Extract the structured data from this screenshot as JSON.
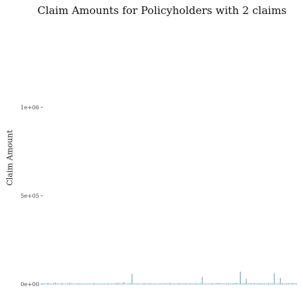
{
  "chart_data": {
    "type": "bar",
    "title": "Claim Amounts for Policyholders with 2 claims",
    "xlabel": "",
    "ylabel": "Claim Amount",
    "ylim": [
      0,
      1000000
    ],
    "y_ticks": [
      {
        "value": 0,
        "label": "0e+00"
      },
      {
        "value": 500000,
        "label": "5e+05"
      },
      {
        "value": 1000000,
        "label": "1e+06"
      }
    ],
    "grid": false,
    "legend": "none",
    "color": "#4a90c8",
    "values": [
      4000,
      2000,
      7000,
      3000,
      1500,
      5000,
      9000,
      3000,
      2000,
      6000,
      2500,
      1000,
      4000,
      8000,
      3000,
      2000,
      1500,
      5000,
      3000,
      2500,
      1000,
      2000,
      4000,
      3000,
      1500,
      6000,
      2000,
      3000,
      2500,
      1000,
      3000,
      2000,
      5000,
      1500,
      3000,
      2000,
      4000,
      8000,
      2500,
      3000,
      12000,
      2000,
      3000,
      6000,
      58000,
      2000,
      3000,
      4000,
      1500,
      2500,
      5000,
      3000,
      2000,
      6000,
      1500,
      2500,
      3000,
      1000,
      4000,
      2000,
      3000,
      5000,
      2500,
      7000,
      1500,
      3000,
      2000,
      4000,
      6000,
      2000,
      3000,
      5000,
      1500,
      4000,
      2500,
      3000,
      6000,
      2000,
      3500,
      40000,
      2000,
      3000,
      2500,
      1500,
      5000,
      2000,
      3000,
      7000,
      4000,
      2500,
      2000,
      3500,
      5500,
      2000,
      3000,
      4000,
      8000,
      2500,
      70000,
      3000,
      4000,
      30000,
      3500,
      5000,
      2500,
      6000,
      2000,
      4000,
      5000,
      2500,
      3000,
      2000,
      6000,
      2500,
      3000,
      62000,
      2000,
      3000,
      35000,
      4000,
      2500,
      3000,
      5000,
      2000,
      6000,
      3500,
      3000
    ]
  }
}
